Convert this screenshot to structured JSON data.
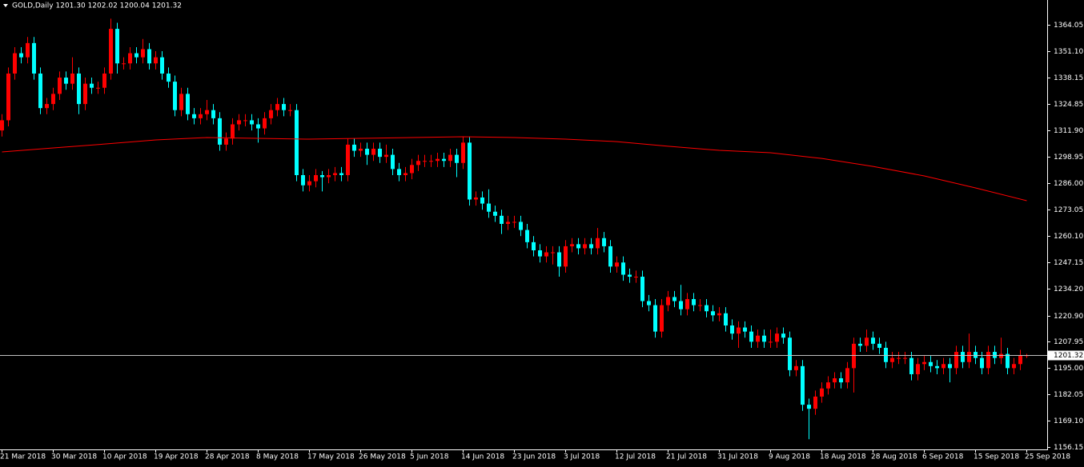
{
  "chart_data": {
    "type": "candlestick",
    "header": "GOLD,Daily  1201.30 1202.02 1200.04 1201.32",
    "background": "#000000",
    "foreground": "#ffffff",
    "up_color": "#ff0000",
    "down_color": "#00ffff",
    "categories": [
      "21 Mar 2018",
      null,
      null,
      null,
      null,
      null,
      null,
      null,
      "30 Mar 2018",
      null,
      null,
      null,
      null,
      null,
      null,
      null,
      "10 Apr 2018",
      null,
      null,
      null,
      null,
      null,
      null,
      null,
      "19 Apr 2018",
      null,
      null,
      null,
      null,
      null,
      null,
      null,
      "28 Apr 2018",
      null,
      null,
      null,
      null,
      null,
      null,
      null,
      "8 May 2018",
      null,
      null,
      null,
      null,
      null,
      null,
      null,
      "17 May 2018",
      null,
      null,
      null,
      null,
      null,
      null,
      null,
      "26 May 2018",
      null,
      null,
      null,
      null,
      null,
      null,
      null,
      "5 Jun 2018",
      null,
      null,
      null,
      null,
      null,
      null,
      null,
      "14 Jun 2018",
      null,
      null,
      null,
      null,
      null,
      null,
      null,
      "23 Jun 2018",
      null,
      null,
      null,
      null,
      null,
      null,
      null,
      "3 Jul 2018",
      null,
      null,
      null,
      null,
      null,
      null,
      null,
      "12 Jul 2018",
      null,
      null,
      null,
      null,
      null,
      null,
      null,
      "21 Jul 2018",
      null,
      null,
      null,
      null,
      null,
      null,
      null,
      "31 Jul 2018",
      null,
      null,
      null,
      null,
      null,
      null,
      null,
      "9 Aug 2018",
      null,
      null,
      null,
      null,
      null,
      null,
      null,
      "18 Aug 2018",
      null,
      null,
      null,
      null,
      null,
      null,
      null,
      "28 Aug 2018",
      null,
      null,
      null,
      null,
      null,
      null,
      null,
      "6 Sep 2018",
      null,
      null,
      null,
      null,
      null,
      null,
      null,
      "15 Sep 2018",
      null,
      null,
      null,
      null,
      null,
      null,
      null,
      "25 Sep 2018"
    ],
    "open": [
      1312,
      1317,
      1340,
      1350,
      1348,
      1355,
      1340,
      1323,
      1325,
      1330,
      1338,
      1335,
      1340,
      1325,
      1335,
      1333,
      1333,
      1340,
      1362,
      1345,
      1345,
      1350,
      1348,
      1352,
      1345,
      1348,
      1340,
      1336,
      1322,
      1330,
      1320,
      1318,
      1320,
      1322,
      1318,
      1305,
      1308,
      1315,
      1317,
      1317,
      1315,
      1313,
      1318,
      1322,
      1325,
      1322,
      1322,
      1290,
      1285,
      1287,
      1290,
      1289,
      1290,
      1291,
      1290,
      1305,
      1302,
      1303,
      1300,
      1303,
      1299,
      1300,
      1293,
      1290,
      1291,
      1295,
      1297,
      1297,
      1297,
      1298,
      1297,
      1300,
      1296,
      1306,
      1278,
      1279,
      1276,
      1272,
      1270,
      1266,
      1267,
      1267,
      1263,
      1257,
      1253,
      1250,
      1252,
      1252,
      1245,
      1255,
      1256,
      1254,
      1256,
      1254,
      1259,
      1255,
      1245,
      1247,
      1241,
      1240,
      1240,
      1228,
      1226,
      1213,
      1226,
      1230,
      1228,
      1224,
      1229,
      1226,
      1226,
      1223,
      1221,
      1222,
      1216,
      1212,
      1215,
      1213,
      1208,
      1211,
      1208,
      1208,
      1212,
      1210,
      1194,
      1196,
      1177,
      1175,
      1181,
      1185,
      1188,
      1190,
      1188,
      1195,
      1207,
      1206,
      1210,
      1207,
      1205,
      1198,
      1200,
      1200,
      1200,
      1192,
      1197,
      1198,
      1196,
      1195,
      1197,
      1195,
      1203,
      1198,
      1203,
      1200,
      1195,
      1203,
      1200,
      1202,
      1195,
      1197,
      1201.3
    ],
    "high": [
      1320,
      1343,
      1353,
      1353,
      1358,
      1358,
      1343,
      1328,
      1333,
      1341,
      1341,
      1348,
      1343,
      1338,
      1338,
      1336,
      1343,
      1367,
      1365,
      1348,
      1353,
      1353,
      1357,
      1355,
      1351,
      1351,
      1343,
      1339,
      1333,
      1333,
      1323,
      1323,
      1327,
      1325,
      1321,
      1311,
      1318,
      1320,
      1320,
      1320,
      1318,
      1321,
      1325,
      1328,
      1328,
      1325,
      1325,
      1293,
      1290,
      1293,
      1292,
      1293,
      1294,
      1294,
      1308,
      1308,
      1306,
      1306,
      1306,
      1306,
      1305,
      1303,
      1296,
      1294,
      1298,
      1300,
      1300,
      1300,
      1301,
      1301,
      1303,
      1303,
      1309,
      1309,
      1282,
      1282,
      1283,
      1275,
      1273,
      1270,
      1270,
      1270,
      1266,
      1260,
      1256,
      1255,
      1255,
      1255,
      1258,
      1259,
      1259,
      1259,
      1259,
      1264,
      1262,
      1258,
      1250,
      1250,
      1244,
      1243,
      1243,
      1231,
      1229,
      1229,
      1233,
      1233,
      1236,
      1232,
      1232,
      1229,
      1229,
      1226,
      1225,
      1225,
      1219,
      1218,
      1218,
      1216,
      1214,
      1214,
      1214,
      1215,
      1215,
      1213,
      1199,
      1199,
      1180,
      1184,
      1188,
      1191,
      1193,
      1193,
      1198,
      1210,
      1210,
      1214,
      1213,
      1210,
      1208,
      1203,
      1203,
      1203,
      1203,
      1200,
      1201,
      1201,
      1199,
      1200,
      1200,
      1206,
      1206,
      1212,
      1206,
      1203,
      1206,
      1206,
      1210,
      1205,
      1200,
      1204,
      1202.02
    ],
    "low": [
      1309,
      1314,
      1337,
      1345,
      1345,
      1337,
      1320,
      1320,
      1322,
      1327,
      1332,
      1332,
      1320,
      1322,
      1330,
      1330,
      1330,
      1337,
      1340,
      1342,
      1342,
      1345,
      1345,
      1342,
      1342,
      1337,
      1333,
      1319,
      1319,
      1317,
      1315,
      1315,
      1317,
      1315,
      1302,
      1302,
      1305,
      1312,
      1314,
      1312,
      1306,
      1310,
      1315,
      1319,
      1319,
      1319,
      1287,
      1282,
      1282,
      1284,
      1282,
      1286,
      1287,
      1287,
      1287,
      1299,
      1299,
      1295,
      1297,
      1296,
      1296,
      1290,
      1287,
      1287,
      1288,
      1292,
      1294,
      1294,
      1294,
      1294,
      1294,
      1289,
      1293,
      1275,
      1275,
      1273,
      1269,
      1267,
      1261,
      1263,
      1264,
      1260,
      1254,
      1250,
      1247,
      1247,
      1246,
      1240,
      1242,
      1252,
      1251,
      1251,
      1251,
      1251,
      1252,
      1242,
      1242,
      1238,
      1237,
      1237,
      1225,
      1223,
      1210,
      1210,
      1223,
      1225,
      1221,
      1221,
      1223,
      1223,
      1220,
      1218,
      1218,
      1213,
      1209,
      1205,
      1210,
      1205,
      1205,
      1205,
      1205,
      1205,
      1207,
      1191,
      1191,
      1174,
      1160,
      1172,
      1178,
      1182,
      1185,
      1185,
      1185,
      1183,
      1203,
      1203,
      1204,
      1202,
      1195,
      1195,
      1197,
      1197,
      1189,
      1189,
      1194,
      1193,
      1192,
      1192,
      1188,
      1192,
      1195,
      1195,
      1197,
      1192,
      1192,
      1197,
      1197,
      1192,
      1192,
      1194,
      1200.04
    ],
    "close": [
      1317,
      1340,
      1350,
      1348,
      1355,
      1340,
      1323,
      1325,
      1330,
      1338,
      1335,
      1340,
      1325,
      1335,
      1333,
      1333,
      1340,
      1362,
      1345,
      1345,
      1350,
      1348,
      1352,
      1345,
      1348,
      1340,
      1336,
      1322,
      1330,
      1320,
      1318,
      1320,
      1322,
      1318,
      1305,
      1308,
      1315,
      1317,
      1317,
      1315,
      1313,
      1318,
      1322,
      1325,
      1322,
      1322,
      1290,
      1285,
      1287,
      1290,
      1289,
      1290,
      1291,
      1290,
      1305,
      1302,
      1303,
      1300,
      1303,
      1299,
      1300,
      1293,
      1290,
      1291,
      1295,
      1297,
      1297,
      1297,
      1298,
      1297,
      1300,
      1296,
      1306,
      1278,
      1279,
      1276,
      1272,
      1270,
      1266,
      1267,
      1267,
      1263,
      1257,
      1253,
      1250,
      1252,
      1252,
      1245,
      1255,
      1256,
      1254,
      1256,
      1254,
      1259,
      1255,
      1245,
      1247,
      1241,
      1240,
      1240,
      1228,
      1226,
      1213,
      1226,
      1230,
      1228,
      1224,
      1229,
      1226,
      1226,
      1223,
      1221,
      1222,
      1216,
      1212,
      1215,
      1213,
      1208,
      1211,
      1208,
      1208,
      1212,
      1210,
      1194,
      1196,
      1177,
      1175,
      1181,
      1185,
      1188,
      1190,
      1188,
      1195,
      1207,
      1206,
      1210,
      1207,
      1205,
      1198,
      1200,
      1200,
      1200,
      1192,
      1197,
      1198,
      1196,
      1195,
      1197,
      1195,
      1203,
      1198,
      1203,
      1200,
      1195,
      1203,
      1200,
      1202,
      1195,
      1197,
      1201.3,
      1201.32
    ],
    "ma": {
      "color": "#ff0000",
      "x": [
        "21 Mar 2018",
        "30 Mar 2018",
        "10 Apr 2018",
        "19 Apr 2018",
        "28 Apr 2018",
        "8 May 2018",
        "17 May 2018",
        "26 May 2018",
        "5 Jun 2018",
        "14 Jun 2018",
        "23 Jun 2018",
        "3 Jul 2018",
        "12 Jul 2018",
        "21 Jul 2018",
        "31 Jul 2018",
        "9 Aug 2018",
        "18 Aug 2018",
        "28 Aug 2018",
        "6 Sep 2018",
        "15 Sep 2018",
        "25 Sep 2018"
      ],
      "values": [
        1301.4,
        1303.4,
        1305.3,
        1307.3,
        1308.5,
        1308.1,
        1307.7,
        1308.1,
        1308.5,
        1308.9,
        1308.5,
        1307.7,
        1306.5,
        1304.2,
        1302.2,
        1301.0,
        1298.2,
        1294.3,
        1289.6,
        1283.7,
        1277.4
      ]
    },
    "current_price": {
      "value": 1201.32,
      "label": "1201.32"
    },
    "ylim": [
      1155,
      1376.2
    ],
    "yticks": [
      1364.05,
      {
        "value": 1351.1,
        "label": "1351.10"
      },
      1338.15,
      1324.85,
      {
        "value": 1311.9,
        "label": "1311.90"
      },
      1298.95,
      {
        "value": 1286,
        "label": "1286.00"
      },
      1273.05,
      {
        "value": 1260.1,
        "label": "1260.10"
      },
      1247.15,
      {
        "value": 1234.2,
        "label": "1234.20"
      },
      {
        "value": 1220.9,
        "label": "1220.90"
      },
      1207.95,
      {
        "value": 1195,
        "label": "1195.00"
      },
      1182.05,
      {
        "value": 1169.1,
        "label": "1169.10"
      },
      1156.15
    ]
  }
}
